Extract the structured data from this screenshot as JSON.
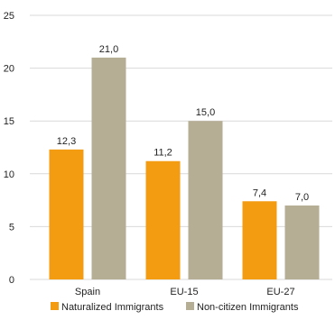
{
  "chart_data": {
    "type": "bar",
    "categories": [
      "Spain",
      "EU-15",
      "EU-27"
    ],
    "series": [
      {
        "name": "Naturalized Immigrants",
        "values": [
          12.3,
          11.2,
          7.4
        ],
        "labels": [
          "12,3",
          "11,2",
          "7,4"
        ],
        "color": "#F39C12"
      },
      {
        "name": "Non-citizen Immigrants",
        "values": [
          21.0,
          15.0,
          7.0
        ],
        "labels": [
          "21,0",
          "15,0",
          "7,0"
        ],
        "color": "#B5AE95"
      }
    ],
    "ylim": [
      0,
      25
    ],
    "yticks": [
      0,
      5,
      10,
      15,
      20,
      25
    ],
    "grid": true,
    "legend_position": "bottom",
    "title": "",
    "xlabel": "",
    "ylabel": ""
  }
}
